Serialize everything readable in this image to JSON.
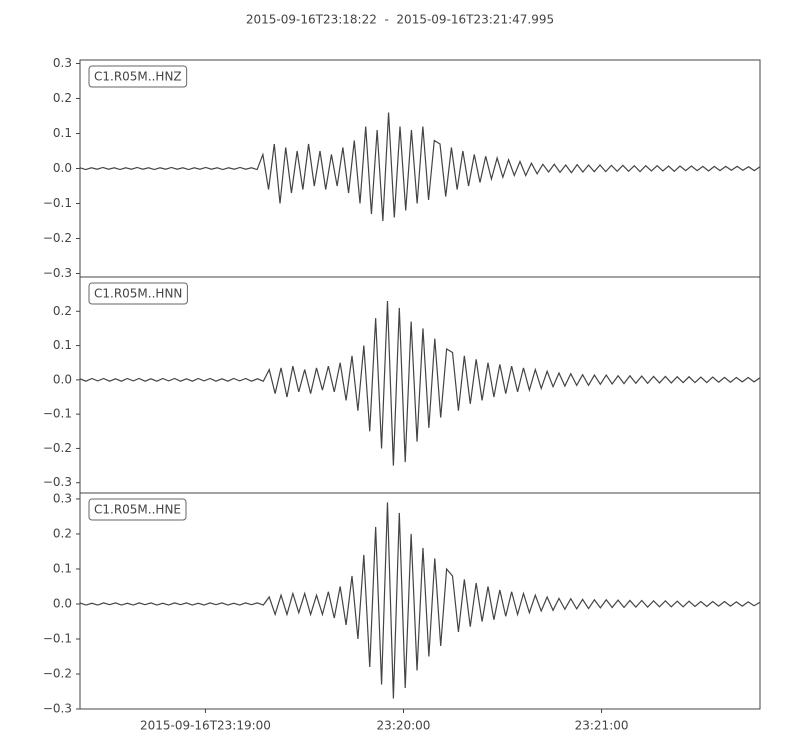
{
  "chart_data": [
    {
      "type": "line",
      "title": "2015-09-16T23:18:22  -  2015-09-16T23:21:47.995",
      "label": "C1.R05M..HNZ",
      "color": "#444444",
      "xlim": [
        "2015-09-16T23:18:22",
        "2015-09-16T23:21:47.995"
      ],
      "ylim": [
        -0.31,
        0.31
      ],
      "yticks": [
        {
          "value": -0.3,
          "label": "−0.3"
        },
        {
          "value": -0.2,
          "label": "−0.2"
        },
        {
          "value": -0.1,
          "label": "−0.1"
        },
        {
          "value": 0,
          "label": "0.0"
        },
        0.1,
        0.2,
        0.3
      ],
      "values": [
        0.002,
        -0.003,
        0.002,
        -0.002,
        0.003,
        -0.002,
        0.002,
        -0.003,
        0.002,
        -0.002,
        0.003,
        -0.002,
        0.002,
        -0.003,
        0.002,
        -0.002,
        0.003,
        -0.002,
        0.002,
        -0.003,
        0.002,
        -0.002,
        0.003,
        -0.002,
        0.002,
        -0.003,
        0.002,
        -0.002,
        0.003,
        -0.002,
        0.002,
        -0.003,
        0.04,
        -0.06,
        0.07,
        -0.1,
        0.06,
        -0.07,
        0.05,
        -0.06,
        0.07,
        -0.05,
        0.05,
        -0.06,
        0.04,
        -0.05,
        0.06,
        -0.07,
        0.08,
        -0.1,
        0.12,
        -0.13,
        0.11,
        -0.15,
        0.16,
        -0.14,
        0.12,
        -0.12,
        0.11,
        -0.1,
        0.12,
        -0.09,
        0.08,
        0.07,
        -0.08,
        0.06,
        -0.06,
        0.05,
        -0.05,
        0.04,
        -0.04,
        0.035,
        -0.03,
        0.03,
        -0.025,
        0.025,
        -0.02,
        0.02,
        -0.02,
        0.015,
        -0.015,
        0.012,
        -0.01,
        0.012,
        -0.011,
        0.01,
        -0.012,
        0.011,
        -0.01,
        0.01,
        -0.009,
        0.01,
        -0.009,
        0.009,
        -0.008,
        0.009,
        -0.008,
        0.008,
        -0.009,
        0.008,
        -0.007,
        0.008,
        -0.007,
        0.007,
        -0.008,
        0.007,
        -0.006,
        0.007,
        -0.006,
        0.006,
        -0.007,
        0.006,
        -0.006,
        0.006,
        -0.005,
        0.006,
        -0.005,
        0.005,
        -0.006,
        0.005
      ]
    },
    {
      "type": "line",
      "label": "C1.R05M..HNN",
      "color": "#444444",
      "xlim": [
        "2015-09-16T23:18:22",
        "2015-09-16T23:21:47.995"
      ],
      "ylim": [
        -0.33,
        0.3
      ],
      "yticks": [
        {
          "value": -0.3,
          "label": "−0.3"
        },
        {
          "value": -0.2,
          "label": "−0.2"
        },
        {
          "value": -0.1,
          "label": "−0.1"
        },
        {
          "value": 0,
          "label": "0.0"
        },
        0.1,
        0.2
      ],
      "values": [
        0.003,
        -0.004,
        0.004,
        -0.003,
        0.004,
        -0.004,
        0.003,
        -0.004,
        0.004,
        -0.003,
        0.004,
        -0.004,
        0.003,
        -0.004,
        0.004,
        -0.003,
        0.004,
        -0.004,
        0.003,
        -0.004,
        0.004,
        -0.003,
        0.004,
        -0.004,
        0.003,
        -0.004,
        0.004,
        -0.003,
        0.004,
        -0.004,
        0.003,
        -0.004,
        0.03,
        -0.04,
        0.035,
        -0.05,
        0.04,
        -0.035,
        0.03,
        -0.04,
        0.035,
        -0.03,
        0.04,
        -0.035,
        0.05,
        -0.06,
        0.07,
        -0.09,
        0.1,
        -0.15,
        0.18,
        -0.2,
        0.23,
        -0.25,
        0.21,
        -0.24,
        0.17,
        -0.18,
        0.15,
        -0.14,
        0.12,
        -0.11,
        0.09,
        0.08,
        -0.09,
        0.07,
        -0.07,
        0.06,
        -0.06,
        0.05,
        -0.05,
        0.045,
        -0.04,
        0.04,
        -0.035,
        0.035,
        -0.03,
        0.03,
        -0.025,
        0.025,
        -0.02,
        0.02,
        -0.018,
        0.018,
        -0.016,
        0.015,
        -0.016,
        0.014,
        -0.013,
        0.014,
        -0.012,
        0.012,
        -0.011,
        0.012,
        -0.01,
        0.011,
        -0.01,
        0.01,
        -0.009,
        0.01,
        -0.009,
        0.009,
        -0.008,
        0.009,
        -0.008,
        0.008,
        -0.008,
        0.008,
        -0.007,
        0.007,
        -0.007,
        0.007,
        -0.006,
        0.007,
        -0.006,
        0.006
      ]
    },
    {
      "type": "line",
      "label": "C1.R05M..HNE",
      "color": "#444444",
      "xlim": [
        "2015-09-16T23:18:22",
        "2015-09-16T23:21:47.995"
      ],
      "ylim": [
        -0.3,
        0.317
      ],
      "yticks": [
        {
          "value": -0.3,
          "label": "−0.3"
        },
        {
          "value": -0.2,
          "label": "−0.2"
        },
        {
          "value": -0.1,
          "label": "−0.1"
        },
        {
          "value": 0,
          "label": "0.0"
        },
        0.1,
        0.2,
        0.3
      ],
      "xticks": [
        "2015-09-16T23:19:00",
        {
          "value": "2015-09-16T23:20:00",
          "label": "23:20:00"
        },
        {
          "value": "2015-09-16T23:21:00",
          "label": "23:21:00"
        }
      ],
      "values": [
        0.003,
        -0.003,
        0.002,
        -0.003,
        0.003,
        -0.002,
        0.003,
        -0.003,
        0.002,
        -0.003,
        0.003,
        -0.002,
        0.003,
        -0.003,
        0.002,
        -0.003,
        0.003,
        -0.002,
        0.003,
        -0.003,
        0.002,
        -0.003,
        0.003,
        -0.002,
        0.003,
        -0.003,
        0.002,
        -0.003,
        0.003,
        -0.002,
        0.003,
        -0.003,
        0.02,
        -0.03,
        0.025,
        -0.03,
        0.03,
        -0.025,
        0.03,
        -0.03,
        0.025,
        -0.03,
        0.035,
        -0.04,
        0.05,
        -0.06,
        0.08,
        -0.1,
        0.14,
        -0.18,
        0.22,
        -0.23,
        0.29,
        -0.27,
        0.26,
        -0.24,
        0.2,
        -0.19,
        0.16,
        -0.15,
        0.13,
        -0.12,
        0.1,
        0.08,
        -0.08,
        0.07,
        -0.065,
        0.06,
        -0.05,
        0.05,
        -0.045,
        0.04,
        -0.035,
        0.035,
        -0.03,
        0.03,
        -0.025,
        0.025,
        -0.02,
        0.02,
        -0.018,
        0.016,
        -0.015,
        0.015,
        -0.014,
        0.013,
        -0.013,
        0.012,
        -0.011,
        0.012,
        -0.01,
        0.011,
        -0.01,
        0.01,
        -0.009,
        0.01,
        -0.009,
        0.009,
        -0.008,
        0.009,
        -0.008,
        0.008,
        -0.008,
        0.008,
        -0.007,
        0.007,
        -0.007,
        0.007,
        -0.006,
        0.007,
        -0.006,
        0.006,
        -0.006,
        0.006,
        -0.005,
        0.005
      ]
    }
  ]
}
